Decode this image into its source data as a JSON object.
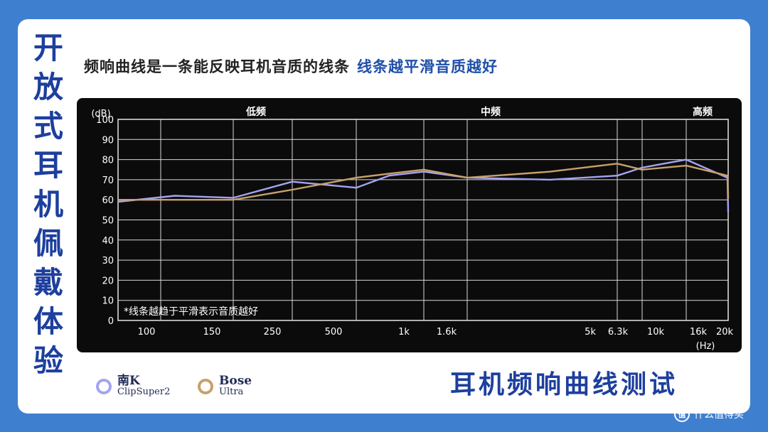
{
  "side_title": [
    "开",
    "放",
    "式",
    "耳",
    "机",
    "佩",
    "戴",
    "体",
    "验"
  ],
  "headline": {
    "main": "频响曲线是一条能反映耳机音质的线条",
    "accent": "线条越平滑音质越好"
  },
  "bottom_title": "耳机频响曲线测试",
  "watermark": {
    "badge": "值",
    "text": "什么值得买"
  },
  "legend": [
    {
      "name": "南K",
      "model": "ClipSuper2",
      "color": "#a5a3f2"
    },
    {
      "name": "Bose",
      "model": "Ultra",
      "color": "#c8a06a"
    }
  ],
  "chart_data": {
    "type": "line",
    "ylabel": "(dB)",
    "xlabel": "(Hz)",
    "ylim": [
      0,
      100
    ],
    "y_ticks": [
      0,
      10,
      20,
      30,
      40,
      50,
      60,
      70,
      80,
      90,
      100
    ],
    "x_ticks": [
      "100",
      "150",
      "250",
      "500",
      "1k",
      "1.6k",
      "5k",
      "6.3k",
      "10k",
      "16k",
      "20k"
    ],
    "bands": [
      "低频",
      "中频",
      "高频"
    ],
    "annotation": "*线条越趋于平滑表示音质越好",
    "grid": true,
    "series": [
      {
        "name": "南K ClipSuper2",
        "color": "#a5a3f2",
        "x": [
          100,
          150,
          250,
          500,
          700,
          1000,
          1600,
          3000,
          5000,
          6300,
          10000,
          16000,
          20000
        ],
        "values": [
          62,
          61,
          69,
          66,
          72,
          74,
          71,
          70,
          72,
          76,
          80,
          71,
          54
        ]
      },
      {
        "name": "Bose Ultra",
        "color": "#c8a06a",
        "x": [
          100,
          150,
          250,
          500,
          700,
          1000,
          1600,
          3000,
          5000,
          6300,
          10000,
          16000,
          20000
        ],
        "values": [
          60,
          60,
          65,
          71,
          73,
          75,
          71,
          74,
          78,
          75,
          77,
          72,
          61
        ]
      }
    ]
  }
}
